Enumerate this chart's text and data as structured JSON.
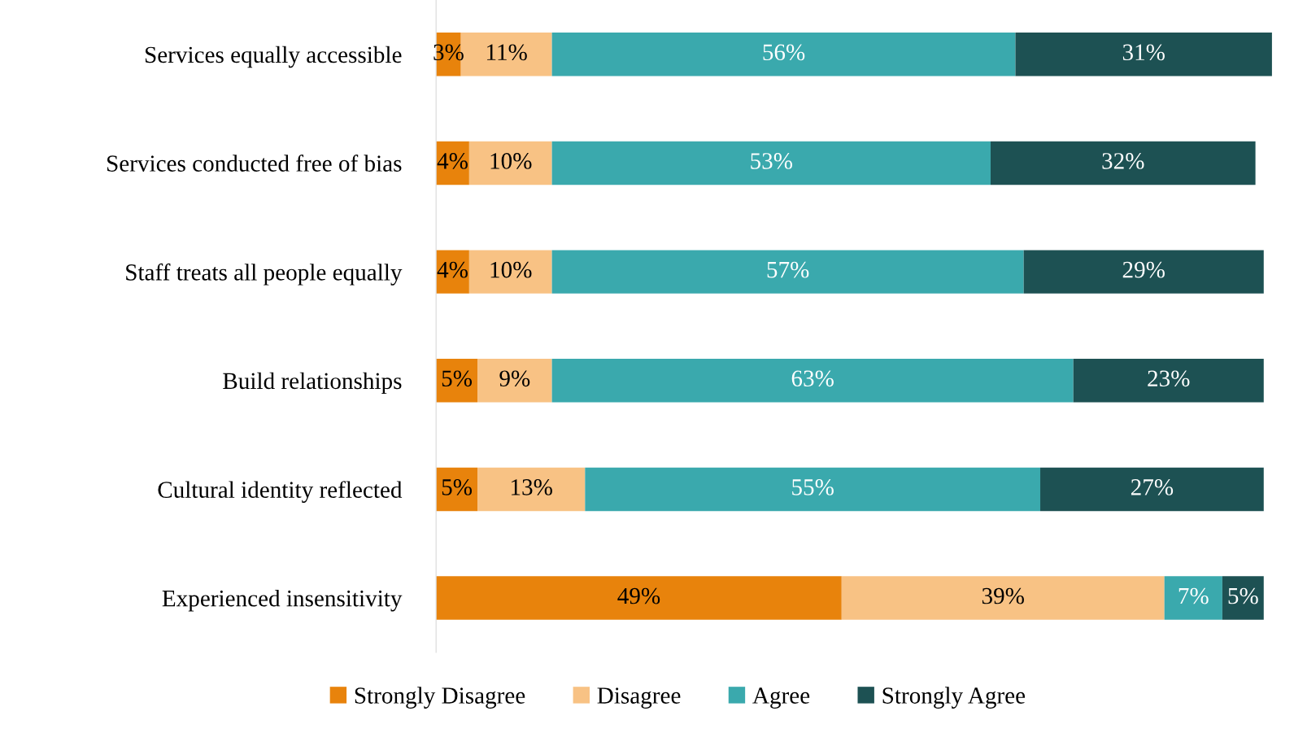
{
  "chart_data": {
    "type": "bar",
    "orientation": "horizontal",
    "stacked": true,
    "categories": [
      "Services equally accessible",
      "Services conducted free of bias",
      "Staff treats all people equally",
      "Build relationships",
      "Cultural identity reflected",
      "Experienced insensitivity"
    ],
    "series": [
      {
        "name": "Strongly Disagree",
        "color": "#e8830c",
        "values": [
          3,
          4,
          4,
          5,
          5,
          49
        ],
        "value_labels": [
          "3%",
          "4%",
          "4%",
          "5%",
          "5%",
          "49%"
        ]
      },
      {
        "name": "Disagree",
        "color": "#f8c284",
        "values": [
          11,
          10,
          10,
          9,
          13,
          39
        ],
        "value_labels": [
          "11%",
          "10%",
          "10%",
          "9%",
          "13%",
          "39%"
        ]
      },
      {
        "name": "Agree",
        "color": "#3aa9ad",
        "values": [
          56,
          53,
          57,
          63,
          55,
          7
        ],
        "value_labels": [
          "56%",
          "53%",
          "57%",
          "63%",
          "55%",
          "7%"
        ]
      },
      {
        "name": "Strongly Agree",
        "color": "#1d5153",
        "values": [
          31,
          32,
          29,
          23,
          27,
          5
        ],
        "value_labels": [
          "31%",
          "32%",
          "29%",
          "23%",
          "27%",
          "5%"
        ]
      }
    ],
    "xlim": [
      0,
      101
    ],
    "tick_labels": "y",
    "legend": "bottom",
    "grid": false
  }
}
